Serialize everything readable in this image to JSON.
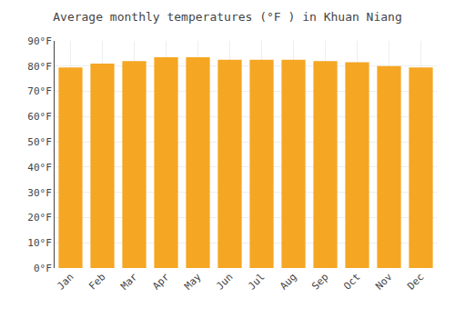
{
  "chart_data": {
    "type": "bar",
    "title": "Average monthly temperatures (°F ) in Khuan Niang",
    "categories": [
      "Jan",
      "Feb",
      "Mar",
      "Apr",
      "May",
      "Jun",
      "Jul",
      "Aug",
      "Sep",
      "Oct",
      "Nov",
      "Dec"
    ],
    "values": [
      79.5,
      81.0,
      82.0,
      83.5,
      83.5,
      82.5,
      82.5,
      82.5,
      82.0,
      81.5,
      80.0,
      79.5
    ],
    "color": "#F5A623",
    "ylim": [
      0,
      90
    ],
    "yticks": [
      {
        "value": 0,
        "label": "0°F"
      },
      {
        "value": 10,
        "label": "10°F"
      },
      {
        "value": 20,
        "label": "20°F"
      },
      {
        "value": 30,
        "label": "30°F"
      },
      {
        "value": 40,
        "label": "40°F"
      },
      {
        "value": 50,
        "label": "50°F"
      },
      {
        "value": 60,
        "label": "60°F"
      },
      {
        "value": 70,
        "label": "70°F"
      },
      {
        "value": 80,
        "label": "80°F"
      },
      {
        "value": 90,
        "label": "90°F"
      }
    ],
    "grid": true
  }
}
